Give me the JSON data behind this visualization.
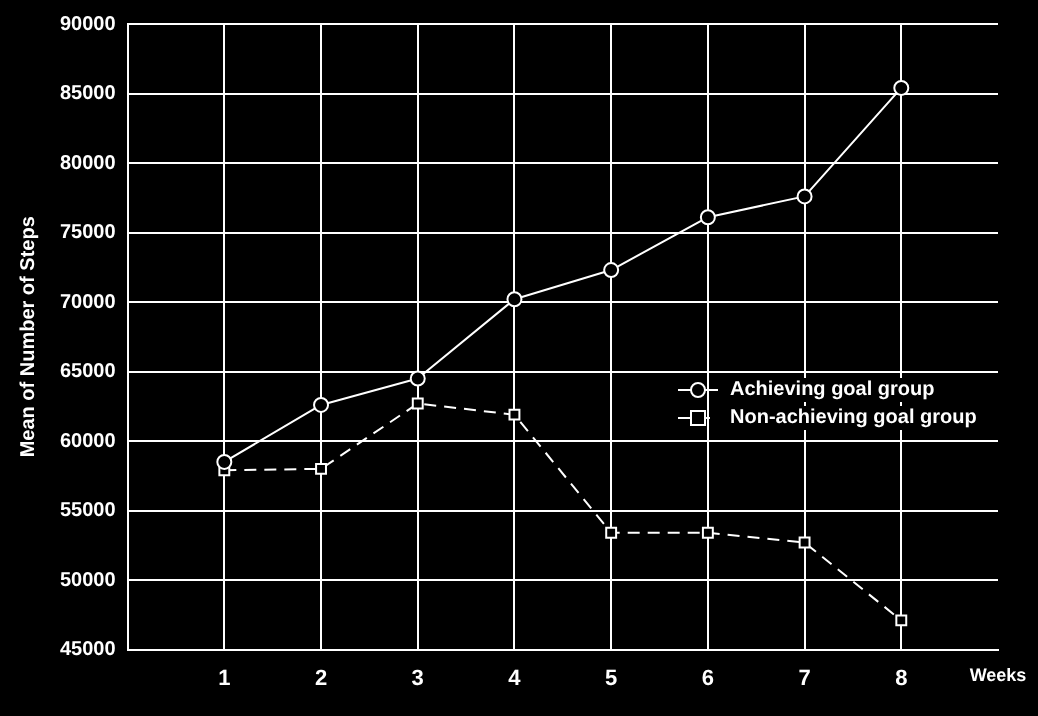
{
  "chart_data": {
    "type": "line",
    "xlabel": "Weeks",
    "ylabel": "Mean of Number of Steps",
    "x": [
      1,
      2,
      3,
      4,
      5,
      6,
      7,
      8
    ],
    "xlim": [
      0,
      9
    ],
    "xticks": [
      1,
      2,
      3,
      4,
      5,
      6,
      7,
      8
    ],
    "ylim": [
      45000,
      90000
    ],
    "yticks": [
      45000,
      50000,
      55000,
      60000,
      65000,
      70000,
      75000,
      80000,
      85000,
      90000
    ],
    "grid": true,
    "legend": "right",
    "series": [
      {
        "name": "Achieving goal group",
        "color": "#ffffff",
        "marker": "circle",
        "line_style": "solid",
        "values": [
          58500,
          62600,
          64500,
          70200,
          72300,
          76100,
          77600,
          85400
        ]
      },
      {
        "name": "Non-achieving goal group",
        "color": "#ffffff",
        "marker": "square",
        "line_style": "dashed",
        "values": [
          57900,
          58000,
          62700,
          61900,
          53400,
          53400,
          52700,
          47100
        ]
      }
    ]
  }
}
